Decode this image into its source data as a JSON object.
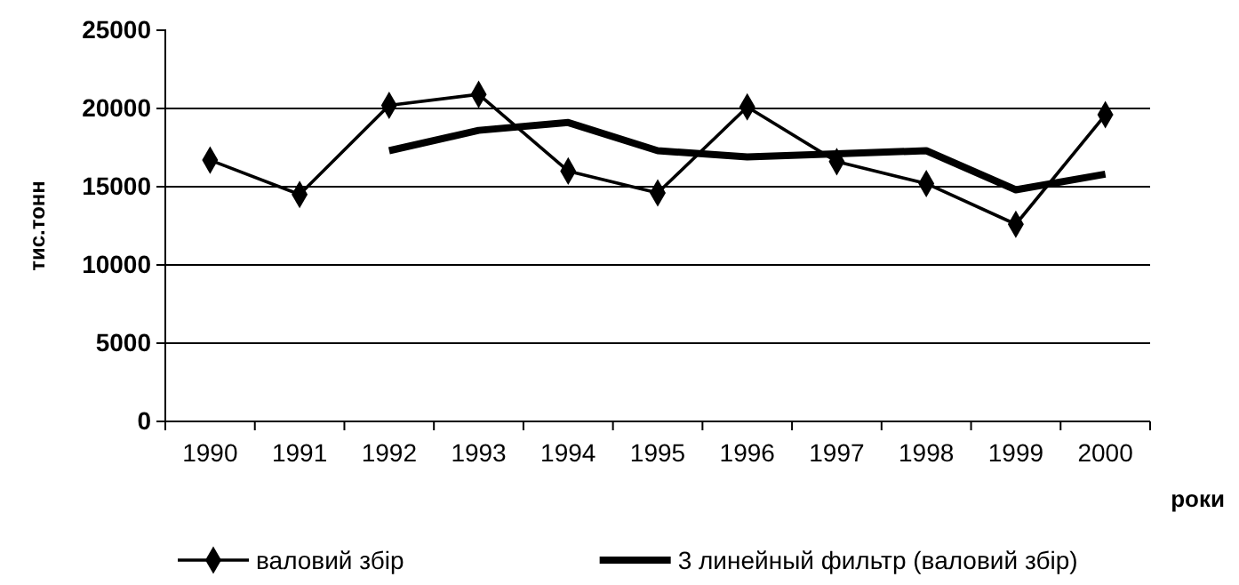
{
  "chart_data": {
    "type": "line",
    "ylabel": "тис.тонн",
    "xlabel": "роки",
    "categories": [
      "1990",
      "1991",
      "1992",
      "1993",
      "1994",
      "1995",
      "1996",
      "1997",
      "1998",
      "1999",
      "2000"
    ],
    "series": [
      {
        "name": "валовий збір",
        "color": "#000000",
        "marker": "diamond",
        "values": [
          16700,
          14500,
          20200,
          20900,
          16000,
          14600,
          20100,
          16600,
          15200,
          12600,
          19600
        ]
      },
      {
        "name": "3 линейный фильтр (валовий збір)",
        "color": "#000000",
        "marker": "none",
        "values": [
          null,
          null,
          17300,
          18600,
          19100,
          17300,
          16900,
          17100,
          17300,
          14800,
          15800
        ]
      }
    ],
    "ylim": [
      0,
      25000
    ],
    "yticks": [
      0,
      5000,
      10000,
      15000,
      20000,
      25000
    ],
    "grid": "y",
    "legend": "bottom"
  }
}
